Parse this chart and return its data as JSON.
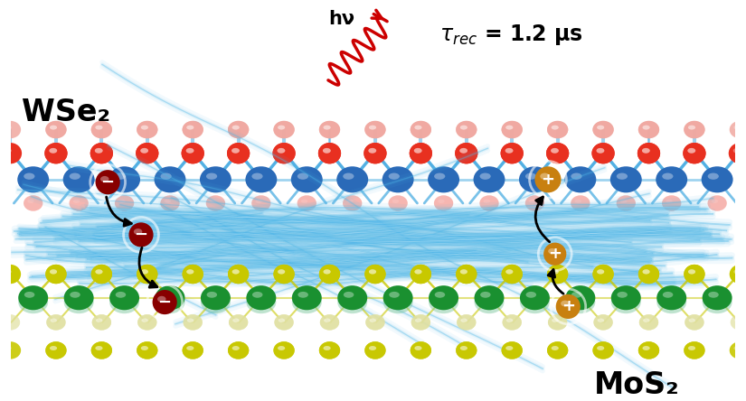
{
  "bg_color": "#ffffff",
  "label_WSe2": "WSe₂",
  "label_MoS2": "MoS₂",
  "label_hv": "hν",
  "label_tau_val": " = 1.2 μs",
  "WSe2_W_color": "#2a6ab8",
  "WSe2_Se_color": "#e83020",
  "WSe2_Se_top_color": "#f0a8a0",
  "WSe2_bond_color": "#40a8e0",
  "CNT_color": "#50b8e8",
  "MoS2_Mo_color": "#1a9030",
  "MoS2_Mo_pale_color": "#80c8a0",
  "MoS2_S_color": "#c8c800",
  "MoS2_S_pale_color": "#e0e0a0",
  "electron_color": "#880000",
  "hole_color": "#c88010",
  "arrow_color": "#000000",
  "light_color": "#cc0000"
}
